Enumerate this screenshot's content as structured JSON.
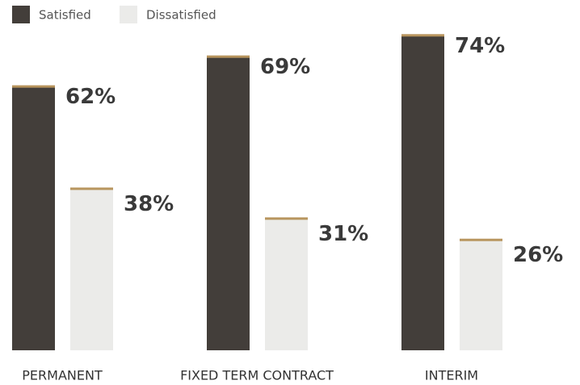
{
  "chart_data": {
    "type": "bar",
    "categories": [
      "PERMANENT",
      "FIXED TERM CONTRACT",
      "INTERIM"
    ],
    "series": [
      {
        "name": "Satisfied",
        "color": "#433e3a",
        "values": [
          62,
          69,
          74
        ],
        "value_labels": [
          "62%",
          "69%",
          "74%"
        ]
      },
      {
        "name": "Dissatisfied",
        "color": "#ebebe9",
        "values": [
          38,
          31,
          26
        ],
        "value_labels": [
          "38%",
          "31%",
          "26%"
        ]
      }
    ],
    "ylim": [
      0,
      75
    ],
    "accent_color": "#b8955e"
  }
}
